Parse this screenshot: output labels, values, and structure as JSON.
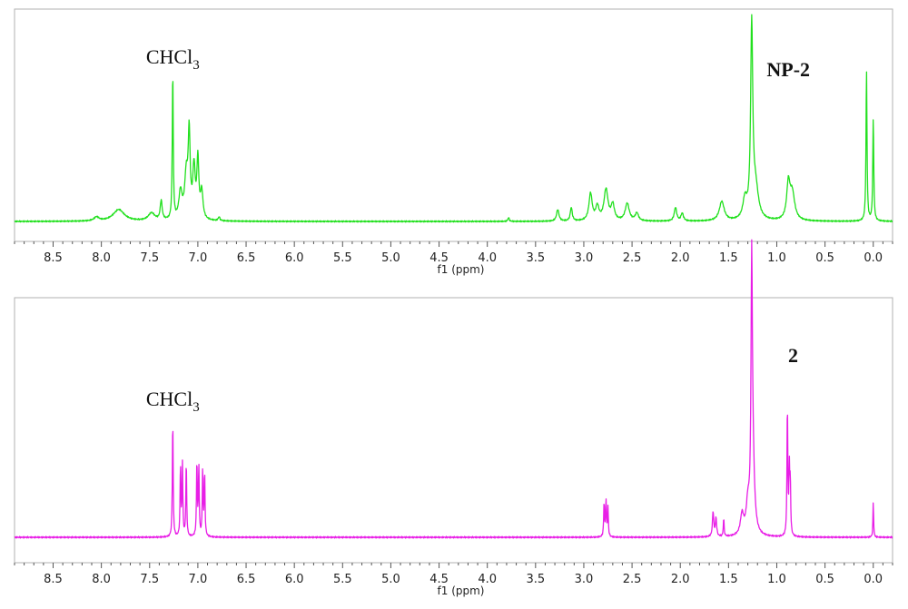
{
  "chart_data": [
    {
      "type": "line",
      "title": "",
      "xlabel": "f1 (ppm)",
      "ylabel": "",
      "xlim": [
        8.9,
        -0.2
      ],
      "x_reversed": true,
      "x_ticks": [
        "8.5",
        "8.0",
        "7.5",
        "7.0",
        "6.5",
        "6.0",
        "5.5",
        "5.0",
        "4.5",
        "4.0",
        "3.5",
        "3.0",
        "2.5",
        "2.0",
        "1.5",
        "1.0",
        "0.5",
        "0.0"
      ],
      "grid": false,
      "color": "#22e01e",
      "annotations": [
        {
          "text": "CHCl",
          "sub": "3",
          "x": 7.26,
          "bold": false
        },
        {
          "text": "NP-2",
          "sub": "",
          "x": 0.88,
          "bold": true
        }
      ],
      "series": [
        {
          "baseline": 0.0,
          "peaks": [
            {
              "x": 8.05,
              "h": 0.02,
              "w": 0.03
            },
            {
              "x": 7.82,
              "h": 0.06,
              "w": 0.07
            },
            {
              "x": 7.48,
              "h": 0.04,
              "w": 0.04
            },
            {
              "x": 7.38,
              "h": 0.1,
              "w": 0.012
            },
            {
              "x": 7.26,
              "h": 0.76,
              "w": 0.006
            },
            {
              "x": 7.18,
              "h": 0.14,
              "w": 0.02
            },
            {
              "x": 7.12,
              "h": 0.22,
              "w": 0.02
            },
            {
              "x": 7.09,
              "h": 0.42,
              "w": 0.012
            },
            {
              "x": 7.04,
              "h": 0.26,
              "w": 0.015
            },
            {
              "x": 7.0,
              "h": 0.3,
              "w": 0.012
            },
            {
              "x": 6.96,
              "h": 0.14,
              "w": 0.015
            },
            {
              "x": 6.78,
              "h": 0.02,
              "w": 0.01
            },
            {
              "x": 3.78,
              "h": 0.02,
              "w": 0.008
            },
            {
              "x": 3.27,
              "h": 0.06,
              "w": 0.015
            },
            {
              "x": 3.13,
              "h": 0.07,
              "w": 0.012
            },
            {
              "x": 2.93,
              "h": 0.14,
              "w": 0.02
            },
            {
              "x": 2.86,
              "h": 0.07,
              "w": 0.02
            },
            {
              "x": 2.77,
              "h": 0.16,
              "w": 0.025
            },
            {
              "x": 2.7,
              "h": 0.08,
              "w": 0.02
            },
            {
              "x": 2.55,
              "h": 0.09,
              "w": 0.025
            },
            {
              "x": 2.45,
              "h": 0.04,
              "w": 0.02
            },
            {
              "x": 2.05,
              "h": 0.07,
              "w": 0.015
            },
            {
              "x": 1.98,
              "h": 0.04,
              "w": 0.015
            },
            {
              "x": 1.57,
              "h": 0.1,
              "w": 0.03
            },
            {
              "x": 1.33,
              "h": 0.1,
              "w": 0.025
            },
            {
              "x": 1.26,
              "h": 0.98,
              "w": 0.013
            },
            {
              "x": 1.22,
              "h": 0.16,
              "w": 0.035
            },
            {
              "x": 0.88,
              "h": 0.18,
              "w": 0.02
            },
            {
              "x": 0.84,
              "h": 0.14,
              "w": 0.03
            },
            {
              "x": 0.07,
              "h": 0.78,
              "w": 0.006
            },
            {
              "x": 0.0,
              "h": 0.53,
              "w": 0.006
            }
          ]
        }
      ]
    },
    {
      "type": "line",
      "title": "",
      "xlabel": "f1 (ppm)",
      "ylabel": "",
      "xlim": [
        8.9,
        -0.2
      ],
      "x_reversed": true,
      "x_ticks": [
        "8.5",
        "8.0",
        "7.5",
        "7.0",
        "6.5",
        "6.0",
        "5.5",
        "5.0",
        "4.5",
        "4.0",
        "3.5",
        "3.0",
        "2.5",
        "2.0",
        "1.5",
        "1.0",
        "0.5",
        "0.0"
      ],
      "grid": false,
      "color": "#e81ee6",
      "annotations": [
        {
          "text": "CHCl",
          "sub": "3",
          "x": 7.26,
          "bold": false
        },
        {
          "text": "2",
          "sub": "",
          "x": 0.83,
          "bold": true
        }
      ],
      "series": [
        {
          "baseline": 0.0,
          "peaks": [
            {
              "x": 7.26,
              "h": 0.52,
              "w": 0.005
            },
            {
              "x": 7.18,
              "h": 0.31,
              "w": 0.005
            },
            {
              "x": 7.16,
              "h": 0.32,
              "w": 0.005
            },
            {
              "x": 7.12,
              "h": 0.33,
              "w": 0.005
            },
            {
              "x": 7.01,
              "h": 0.33,
              "w": 0.005
            },
            {
              "x": 6.99,
              "h": 0.31,
              "w": 0.005
            },
            {
              "x": 6.95,
              "h": 0.29,
              "w": 0.005
            },
            {
              "x": 6.93,
              "h": 0.28,
              "w": 0.005
            },
            {
              "x": 2.79,
              "h": 0.15,
              "w": 0.005
            },
            {
              "x": 2.77,
              "h": 0.16,
              "w": 0.005
            },
            {
              "x": 2.75,
              "h": 0.13,
              "w": 0.005
            },
            {
              "x": 1.66,
              "h": 0.11,
              "w": 0.008
            },
            {
              "x": 1.63,
              "h": 0.08,
              "w": 0.008
            },
            {
              "x": 1.55,
              "h": 0.08,
              "w": 0.005
            },
            {
              "x": 1.36,
              "h": 0.09,
              "w": 0.02
            },
            {
              "x": 1.3,
              "h": 0.12,
              "w": 0.02
            },
            {
              "x": 1.26,
              "h": 1.0,
              "w": 0.008
            },
            {
              "x": 1.25,
              "h": 0.35,
              "w": 0.02
            },
            {
              "x": 0.89,
              "h": 0.58,
              "w": 0.005
            },
            {
              "x": 0.87,
              "h": 0.28,
              "w": 0.005
            },
            {
              "x": 0.86,
              "h": 0.22,
              "w": 0.005
            },
            {
              "x": 0.0,
              "h": 0.16,
              "w": 0.004
            }
          ]
        }
      ]
    }
  ]
}
